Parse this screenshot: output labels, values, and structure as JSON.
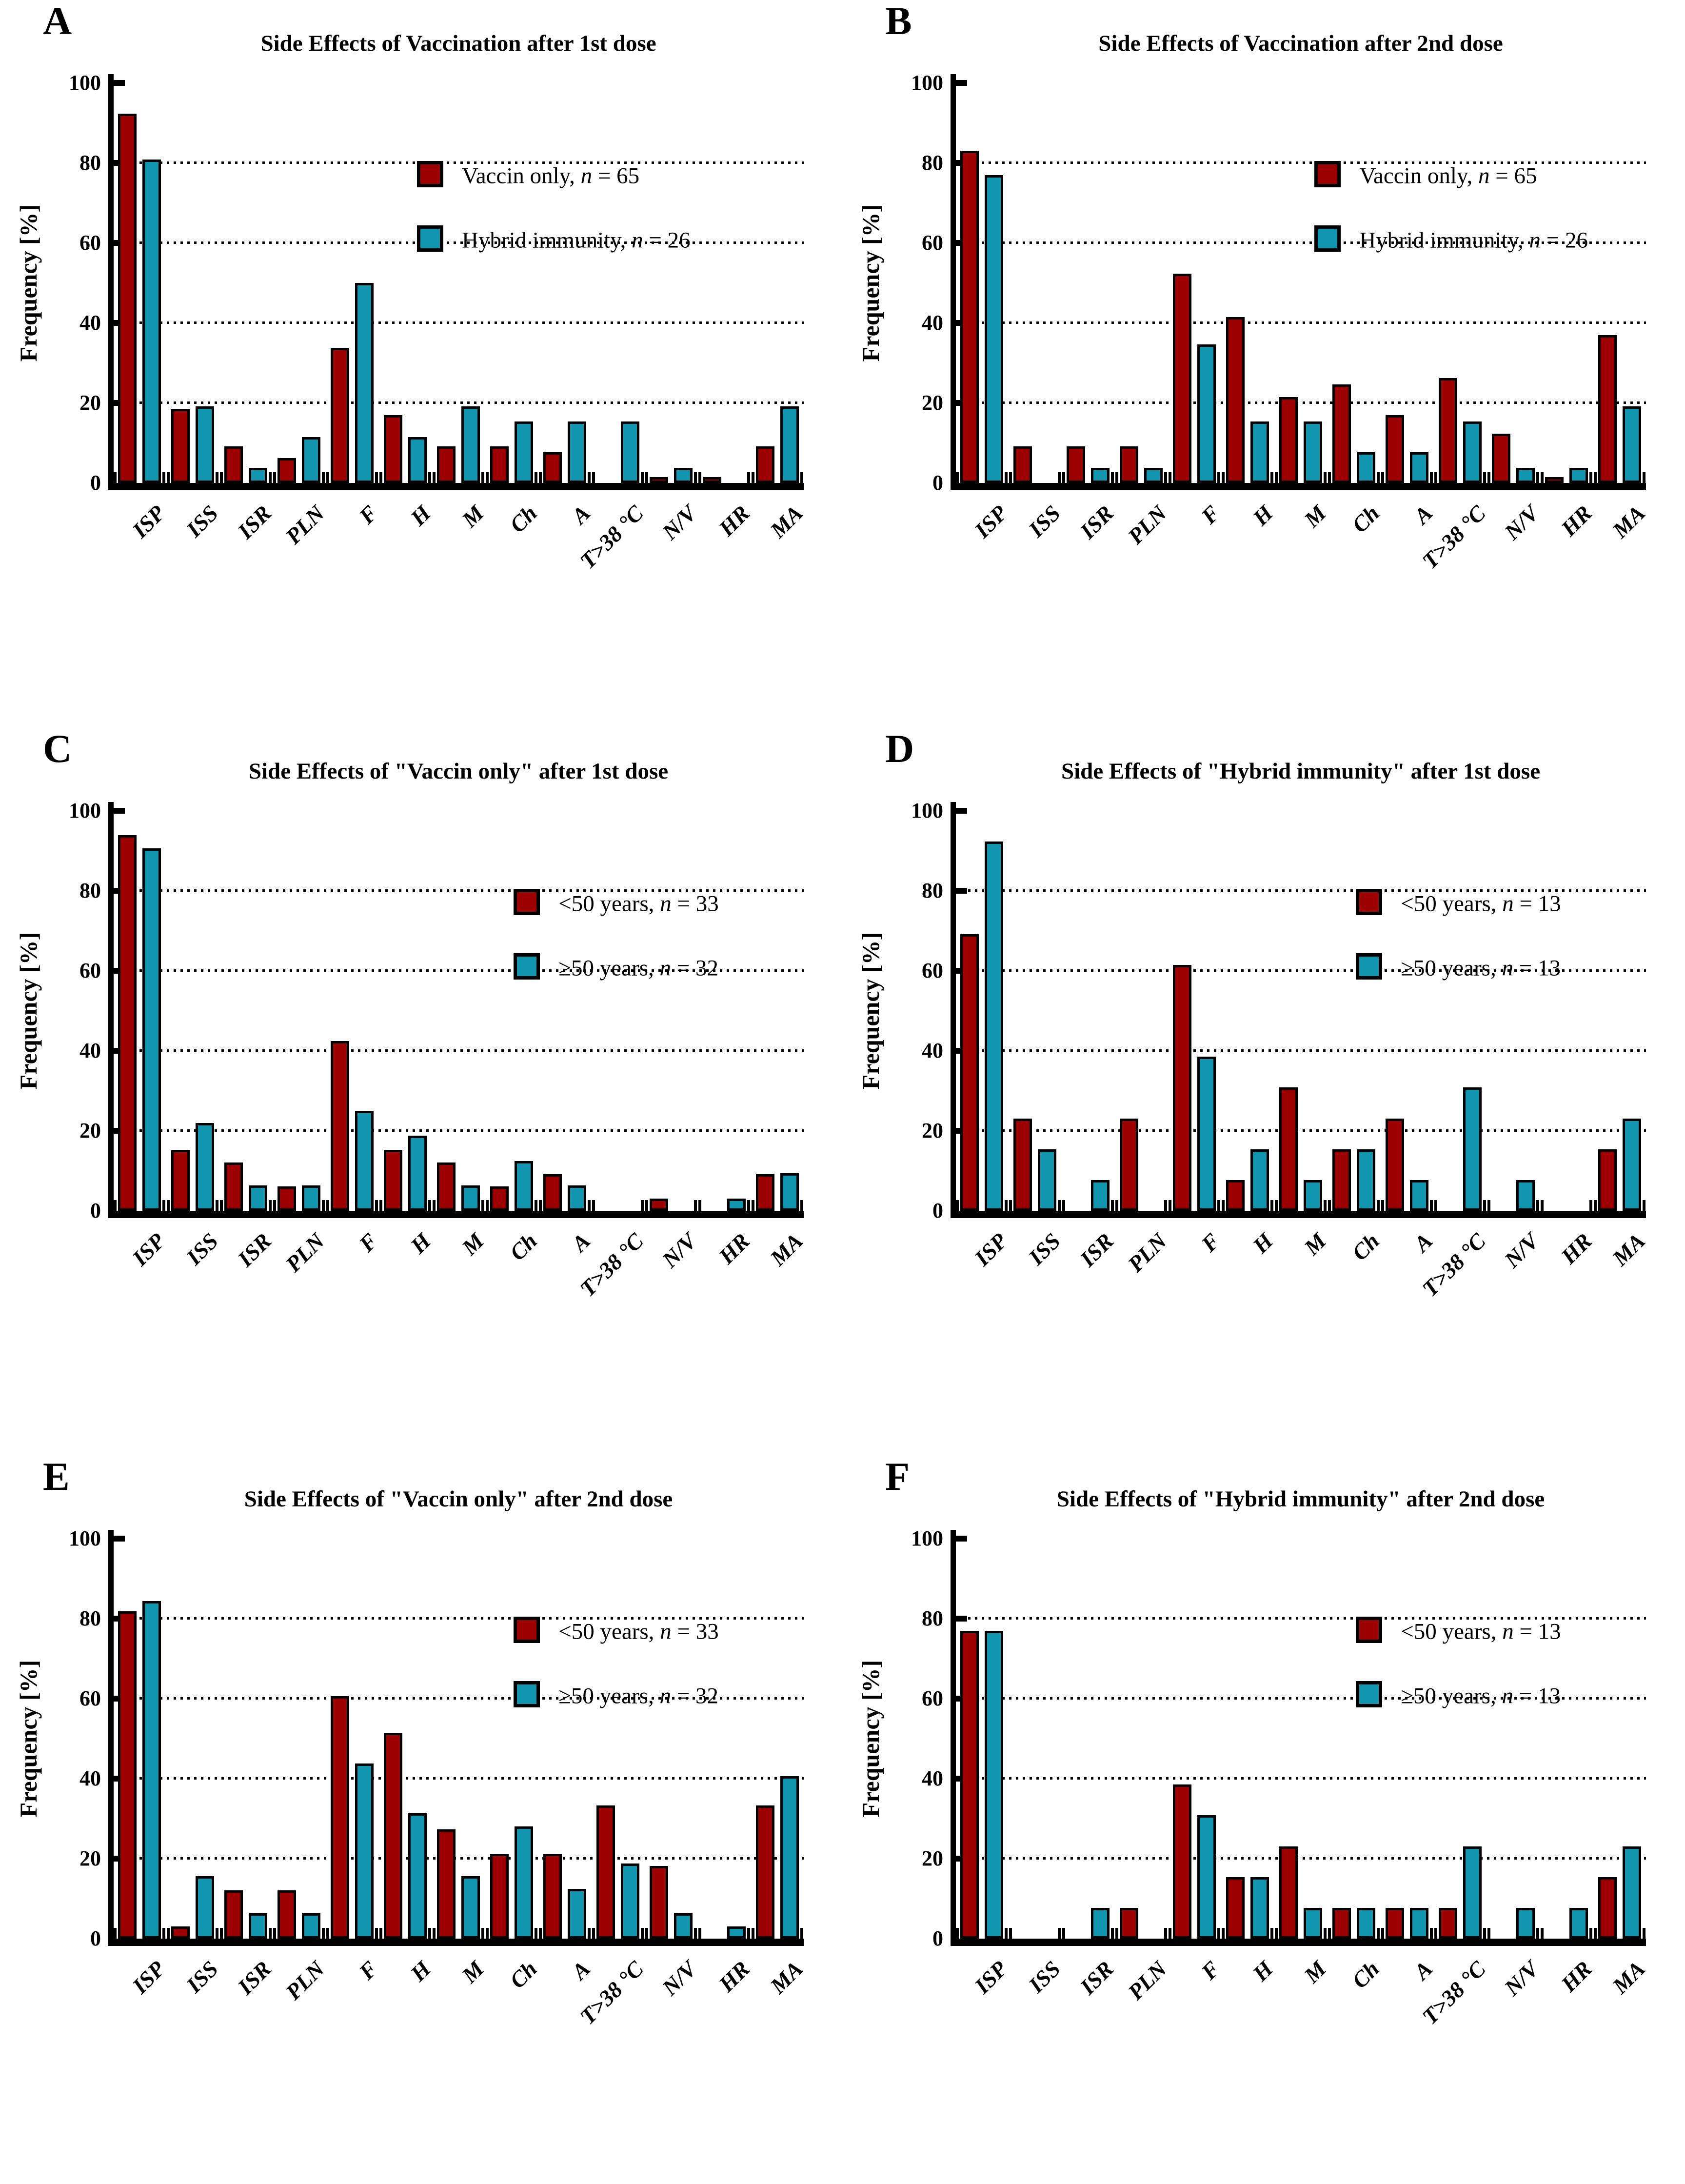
{
  "chart_data": {
    "type": "bar",
    "ylabel": "Frequency [%]",
    "ylim": [
      0,
      100
    ],
    "yticks": [
      0,
      20,
      40,
      60,
      80,
      100
    ],
    "gridlines": [
      20,
      40,
      60,
      80
    ],
    "grid_style": "dotted",
    "legend_position": "right-upper",
    "categories": [
      "ISP",
      "ISS",
      "ISR",
      "PLN",
      "F",
      "H",
      "M",
      "Ch",
      "A",
      "T>38 °C",
      "N/V",
      "HR",
      "MA"
    ],
    "series_colors": [
      "#9C0000",
      "#1295AF"
    ],
    "panels": [
      {
        "letter": "A",
        "title": "Side Effects of Vaccination after 1st dose",
        "legend_x": 0.44,
        "series": [
          {
            "name": "Vaccin only",
            "n": 65,
            "color": "#9C0000",
            "values": [
              92.3,
              18.5,
              9.2,
              6.2,
              33.8,
              16.9,
              9.2,
              9.2,
              7.7,
              0,
              1.5,
              1.5,
              9.2
            ]
          },
          {
            "name": "Hybrid immunity",
            "n": 26,
            "color": "#1295AF",
            "values": [
              80.8,
              19.2,
              3.8,
              11.5,
              50.0,
              11.5,
              19.2,
              15.4,
              15.4,
              15.4,
              3.8,
              0,
              19.2
            ]
          }
        ]
      },
      {
        "letter": "B",
        "title": "Side Effects of Vaccination after 2nd dose",
        "legend_x": 0.52,
        "series": [
          {
            "name": "Vaccin only",
            "n": 65,
            "color": "#9C0000",
            "values": [
              83.1,
              9.2,
              9.2,
              9.2,
              52.3,
              41.5,
              21.5,
              24.6,
              16.9,
              26.2,
              12.3,
              1.5,
              36.9
            ]
          },
          {
            "name": "Hybrid immunity",
            "n": 26,
            "color": "#1295AF",
            "values": [
              76.9,
              0,
              3.8,
              3.8,
              34.6,
              15.4,
              15.4,
              7.7,
              7.7,
              15.4,
              3.8,
              3.8,
              19.2
            ]
          }
        ]
      },
      {
        "letter": "C",
        "title": "Side Effects of \"Vaccin only\"  after 1st dose",
        "legend_x": 0.58,
        "series": [
          {
            "name": "<50 years",
            "n": 33,
            "color": "#9C0000",
            "values": [
              93.9,
              15.2,
              12.1,
              6.1,
              42.4,
              15.2,
              12.1,
              6.1,
              9.1,
              0,
              3.0,
              0,
              9.1
            ]
          },
          {
            "name": "≥50 years",
            "n": 32,
            "color": "#1295AF",
            "values": [
              90.6,
              21.9,
              6.3,
              6.3,
              25.0,
              18.8,
              6.3,
              12.5,
              6.3,
              0,
              0,
              3.1,
              9.4
            ]
          }
        ]
      },
      {
        "letter": "D",
        "title": "Side Effects of \"Hybrid immunity\" after 1st dose",
        "legend_x": 0.58,
        "series": [
          {
            "name": "<50 years",
            "n": 13,
            "color": "#9C0000",
            "values": [
              69.2,
              23.1,
              0,
              23.1,
              61.5,
              7.7,
              30.8,
              15.4,
              23.1,
              0,
              0,
              0,
              15.4
            ]
          },
          {
            "name": "≥50 years",
            "n": 13,
            "color": "#1295AF",
            "values": [
              92.3,
              15.4,
              7.7,
              0,
              38.5,
              15.4,
              7.7,
              15.4,
              7.7,
              30.8,
              7.7,
              0,
              23.1
            ]
          }
        ]
      },
      {
        "letter": "E",
        "title": "Side Effects of \"Vaccin only\" after 2nd dose",
        "legend_x": 0.58,
        "series": [
          {
            "name": "<50 years",
            "n": 33,
            "color": "#9C0000",
            "values": [
              81.8,
              3.0,
              12.1,
              12.1,
              60.6,
              51.5,
              27.3,
              21.2,
              21.2,
              33.3,
              18.2,
              0,
              33.3
            ]
          },
          {
            "name": "≥50 years",
            "n": 32,
            "color": "#1295AF",
            "values": [
              84.4,
              15.6,
              6.3,
              6.3,
              43.8,
              31.3,
              15.6,
              28.1,
              12.5,
              18.8,
              6.3,
              3.1,
              40.6
            ]
          }
        ]
      },
      {
        "letter": "F",
        "title": "Side Effects of \"Hybrid immunity\" after 2nd dose",
        "legend_x": 0.58,
        "series": [
          {
            "name": "<50 years",
            "n": 13,
            "color": "#9C0000",
            "values": [
              76.9,
              0,
              0,
              7.7,
              38.5,
              15.4,
              23.1,
              7.7,
              7.7,
              7.7,
              0,
              0,
              15.4
            ]
          },
          {
            "name": "≥50 years",
            "n": 13,
            "color": "#1295AF",
            "values": [
              76.9,
              0,
              7.7,
              0,
              30.8,
              15.4,
              7.7,
              7.7,
              7.7,
              23.1,
              7.7,
              7.7,
              23.1
            ]
          }
        ]
      }
    ]
  }
}
